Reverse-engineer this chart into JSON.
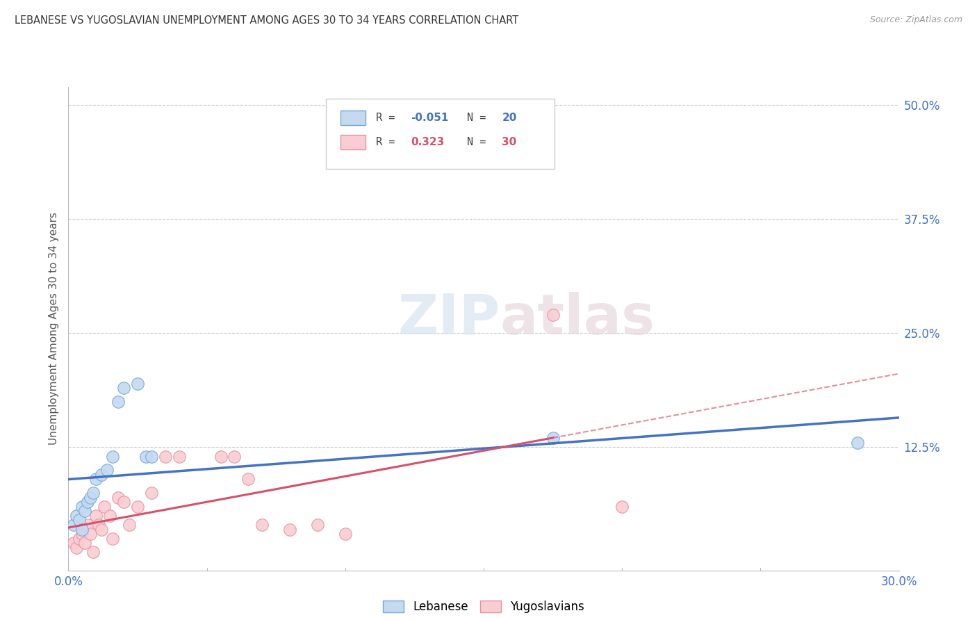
{
  "title": "LEBANESE VS YUGOSLAVIAN UNEMPLOYMENT AMONG AGES 30 TO 34 YEARS CORRELATION CHART",
  "source": "Source: ZipAtlas.com",
  "ylabel": "Unemployment Among Ages 30 to 34 years",
  "xlim": [
    0.0,
    0.3
  ],
  "ylim": [
    -0.01,
    0.52
  ],
  "xticks": [
    0.0,
    0.05,
    0.1,
    0.15,
    0.2,
    0.25,
    0.3
  ],
  "xticklabels": [
    "0.0%",
    "",
    "",
    "",
    "",
    "",
    "30.0%"
  ],
  "yticks": [
    0.0,
    0.125,
    0.25,
    0.375,
    0.5
  ],
  "yticklabels": [
    "",
    "12.5%",
    "25.0%",
    "37.5%",
    "50.0%"
  ],
  "grid_yticks": [
    0.125,
    0.25,
    0.375,
    0.5
  ],
  "background_color": "#ffffff",
  "watermark_zip": "ZIP",
  "watermark_atlas": "atlas",
  "lebanese": {
    "color": "#c5d9f0",
    "edge_color": "#6fa8d8",
    "line_color": "#4472c4",
    "R": -0.051,
    "N": 20,
    "x": [
      0.002,
      0.003,
      0.004,
      0.005,
      0.005,
      0.006,
      0.007,
      0.008,
      0.009,
      0.01,
      0.012,
      0.014,
      0.016,
      0.018,
      0.02,
      0.025,
      0.028,
      0.03,
      0.175,
      0.285
    ],
    "y": [
      0.04,
      0.05,
      0.045,
      0.035,
      0.06,
      0.055,
      0.065,
      0.07,
      0.075,
      0.09,
      0.095,
      0.1,
      0.115,
      0.175,
      0.19,
      0.195,
      0.115,
      0.115,
      0.135,
      0.13
    ]
  },
  "yugoslavian": {
    "color": "#f8cdd3",
    "edge_color": "#e8909e",
    "line_color": "#d94f6a",
    "R": 0.323,
    "N": 30,
    "x": [
      0.002,
      0.003,
      0.004,
      0.005,
      0.006,
      0.007,
      0.008,
      0.009,
      0.01,
      0.011,
      0.012,
      0.013,
      0.015,
      0.016,
      0.018,
      0.02,
      0.022,
      0.025,
      0.03,
      0.035,
      0.04,
      0.055,
      0.06,
      0.065,
      0.07,
      0.08,
      0.09,
      0.1,
      0.175,
      0.2
    ],
    "y": [
      0.02,
      0.015,
      0.025,
      0.03,
      0.02,
      0.04,
      0.03,
      0.01,
      0.05,
      0.04,
      0.035,
      0.06,
      0.05,
      0.025,
      0.07,
      0.065,
      0.04,
      0.06,
      0.075,
      0.115,
      0.115,
      0.115,
      0.115,
      0.09,
      0.04,
      0.035,
      0.04,
      0.03,
      0.27,
      0.06
    ]
  }
}
